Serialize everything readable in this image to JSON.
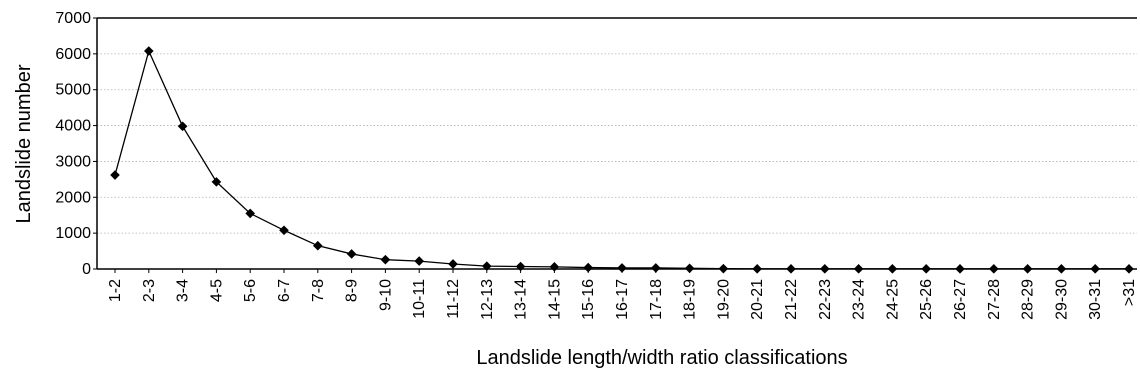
{
  "chart_data": {
    "type": "line",
    "title": "",
    "xlabel": "Landslide length/width ratio classifications",
    "ylabel": "Landslide number",
    "ylim": [
      0,
      7000
    ],
    "yticks": [
      "0",
      "1000",
      "2000",
      "3000",
      "4000",
      "5000",
      "6000",
      "7000"
    ],
    "grid": "horizontal-dotted",
    "legend": "none",
    "categories": [
      "1-2",
      "2-3",
      "3-4",
      "4-5",
      "5-6",
      "6-7",
      "7-8",
      "8-9",
      "9-10",
      "10-11",
      "11-12",
      "12-13",
      "13-14",
      "14-15",
      "15-16",
      "16-17",
      "17-18",
      "18-19",
      "19-20",
      "20-21",
      "21-22",
      "22-23",
      "23-24",
      "24-25",
      "25-26",
      "26-27",
      "27-28",
      "28-29",
      "29-30",
      "30-31",
      ">31"
    ],
    "series": [
      {
        "marker": "diamond",
        "color": "#000000",
        "values": [
          2620,
          6080,
          3980,
          2430,
          1550,
          1080,
          650,
          420,
          260,
          220,
          140,
          80,
          70,
          60,
          40,
          30,
          30,
          20,
          10,
          5,
          5,
          5,
          5,
          5,
          5,
          5,
          5,
          5,
          5,
          5,
          5
        ]
      }
    ]
  }
}
